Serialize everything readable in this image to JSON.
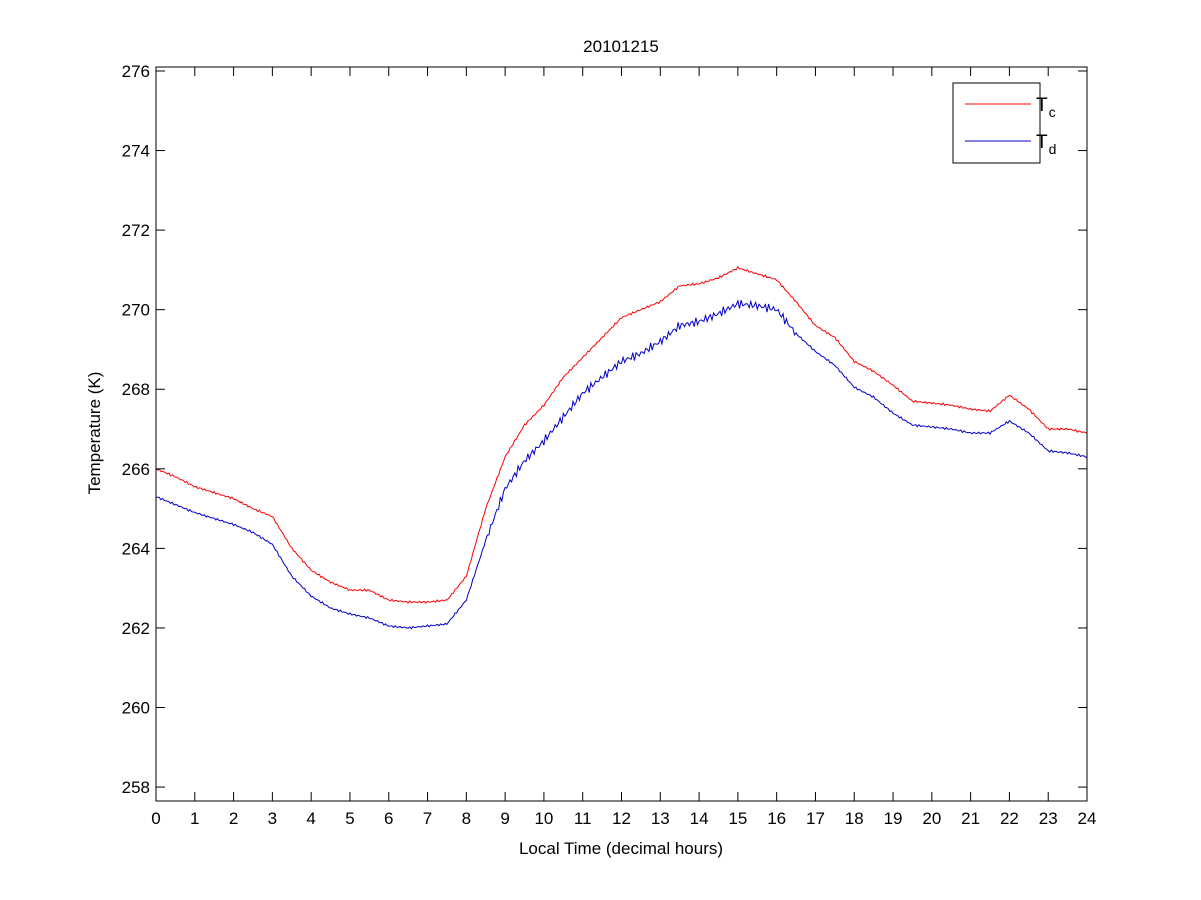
{
  "chart_data": {
    "type": "line",
    "title": "20101215",
    "xlabel": "Local Time (decimal hours)",
    "ylabel": "Temperature (K)",
    "xlim": [
      0,
      24
    ],
    "ylim": [
      257.65,
      276.1
    ],
    "xticks": [
      0,
      1,
      2,
      3,
      4,
      5,
      6,
      7,
      8,
      9,
      10,
      11,
      12,
      13,
      14,
      15,
      16,
      17,
      18,
      19,
      20,
      21,
      22,
      23,
      24
    ],
    "yticks": [
      258,
      260,
      262,
      264,
      266,
      268,
      270,
      272,
      274,
      276
    ],
    "grid": false,
    "legend_position": "top-right",
    "x": [
      0,
      0.5,
      1,
      1.5,
      2,
      2.5,
      3,
      3.5,
      4,
      4.5,
      5,
      5.5,
      6,
      6.5,
      7,
      7.5,
      8,
      8.5,
      9,
      9.5,
      10,
      10.5,
      11,
      11.5,
      12,
      12.5,
      13,
      13.5,
      14,
      14.5,
      15,
      15.5,
      16,
      16.5,
      17,
      17.5,
      18,
      18.5,
      19,
      19.5,
      20,
      20.5,
      21,
      21.5,
      22,
      22.5,
      23,
      23.5,
      24
    ],
    "series": [
      {
        "name": "T",
        "subscript": "c",
        "color": "#ff0000",
        "values": [
          266.0,
          265.8,
          265.55,
          265.4,
          265.25,
          265.0,
          264.8,
          264.0,
          263.45,
          263.15,
          262.95,
          262.95,
          262.7,
          262.65,
          262.65,
          262.7,
          263.3,
          265.0,
          266.3,
          267.1,
          267.6,
          268.3,
          268.8,
          269.3,
          269.8,
          270.0,
          270.2,
          270.6,
          270.65,
          270.8,
          271.05,
          270.9,
          270.75,
          270.2,
          269.6,
          269.3,
          268.7,
          268.45,
          268.1,
          267.7,
          267.65,
          267.6,
          267.5,
          267.45,
          267.85,
          267.5,
          267.0,
          267.0,
          266.9
        ]
      },
      {
        "name": "T",
        "subscript": "d",
        "color": "#0000cc",
        "values": [
          265.3,
          265.1,
          264.9,
          264.75,
          264.6,
          264.4,
          264.1,
          263.3,
          262.8,
          262.5,
          262.35,
          262.25,
          262.05,
          262.0,
          262.05,
          262.1,
          262.7,
          264.2,
          265.5,
          266.2,
          266.7,
          267.3,
          267.9,
          268.3,
          268.7,
          268.9,
          269.2,
          269.6,
          269.7,
          269.9,
          270.15,
          270.1,
          270.0,
          269.4,
          268.95,
          268.6,
          268.05,
          267.8,
          267.4,
          267.1,
          267.05,
          267.0,
          266.9,
          266.9,
          267.2,
          266.9,
          266.45,
          266.4,
          266.3
        ]
      }
    ]
  }
}
